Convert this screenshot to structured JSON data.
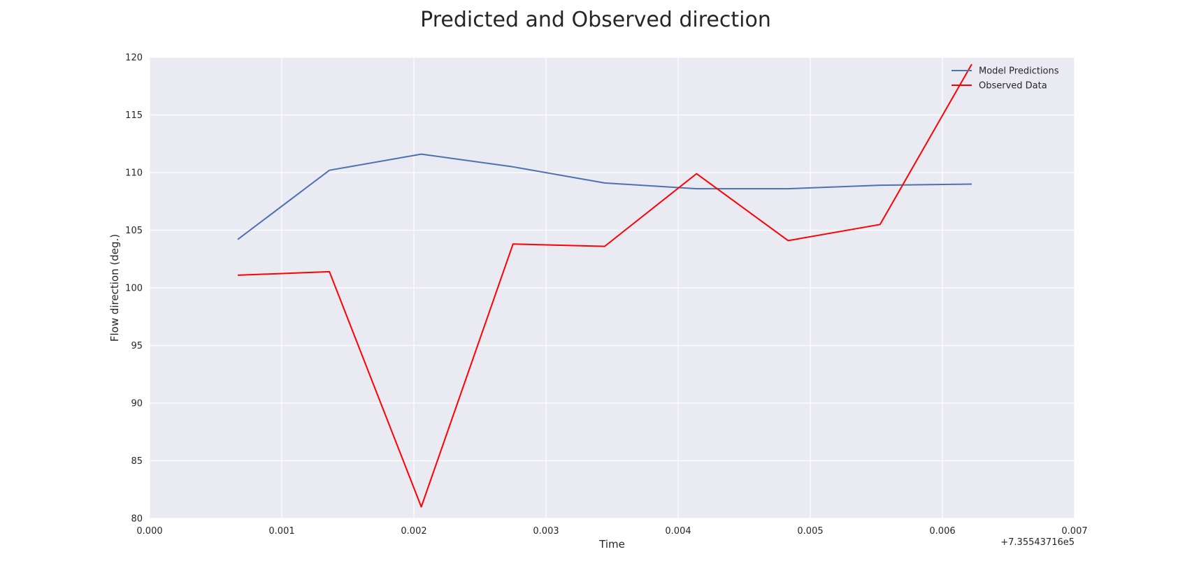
{
  "chart_data": {
    "type": "line",
    "title": "Predicted and Observed direction",
    "xlabel": "Time",
    "ylabel": "Flow direction (deg.)",
    "x_offset_label": "+7.35543716e5",
    "xlim": [
      0.0,
      0.007
    ],
    "ylim": [
      80,
      120
    ],
    "x_ticks": [
      "0.000",
      "0.001",
      "0.002",
      "0.003",
      "0.004",
      "0.005",
      "0.006",
      "0.007"
    ],
    "y_ticks": [
      "80",
      "85",
      "90",
      "95",
      "100",
      "105",
      "110",
      "115",
      "120"
    ],
    "grid": true,
    "legend_position": "top-right",
    "background_color": "#EAEAF2",
    "series": [
      {
        "name": "Model Predictions",
        "color": "#4C72B0",
        "x": [
          0.000667,
          0.001361,
          0.002056,
          0.00275,
          0.003444,
          0.004139,
          0.004833,
          0.005528,
          0.006222
        ],
        "y": [
          104.2,
          110.2,
          111.6,
          110.5,
          109.1,
          108.6,
          108.6,
          108.9,
          109.0
        ]
      },
      {
        "name": "Observed Data",
        "color": "#FF0000",
        "x": [
          0.000667,
          0.001361,
          0.002056,
          0.00275,
          0.003444,
          0.004139,
          0.004833,
          0.005528,
          0.006222
        ],
        "y": [
          101.1,
          101.4,
          81.0,
          103.8,
          103.6,
          109.9,
          104.1,
          105.5,
          119.4
        ]
      }
    ]
  }
}
